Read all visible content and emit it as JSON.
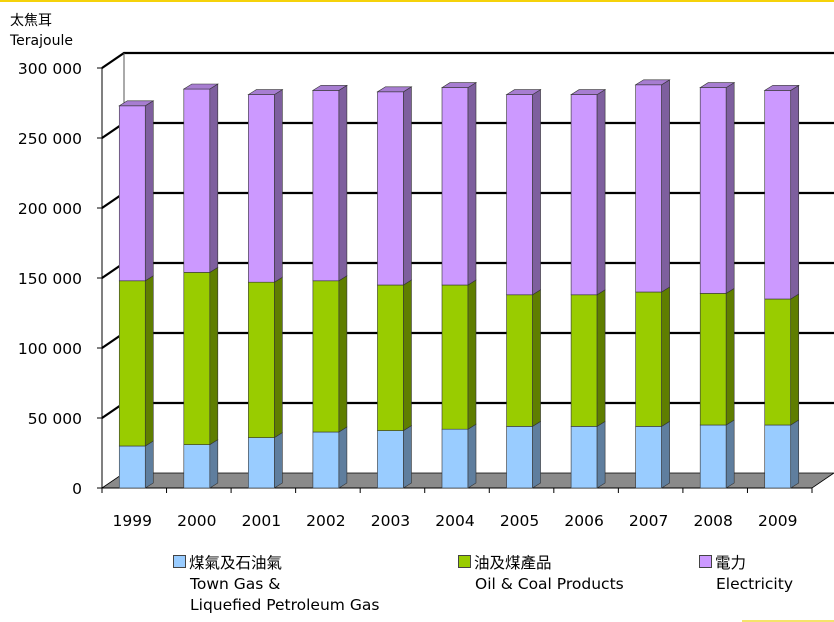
{
  "chart_data": {
    "type": "bar",
    "stacked": true,
    "unit_zh": "太焦耳",
    "unit_en": "Terajoule",
    "categories": [
      "1999",
      "2000",
      "2001",
      "2002",
      "2003",
      "2004",
      "2005",
      "2006",
      "2007",
      "2008",
      "2009"
    ],
    "series": [
      {
        "name_zh": "煤氣及石油氣",
        "name_en_line1": "Town Gas &",
        "name_en_line2": "Liquefied Petroleum Gas",
        "color": "#99ccff",
        "values": [
          30000,
          31000,
          36000,
          40000,
          41000,
          42000,
          44000,
          44000,
          44000,
          45000,
          45000
        ]
      },
      {
        "name_zh": "油及煤產品",
        "name_en_line1": "Oil & Coal Products",
        "name_en_line2": "",
        "color": "#99cc00",
        "values": [
          118000,
          123000,
          111000,
          108000,
          104000,
          103000,
          94000,
          94000,
          96000,
          94000,
          90000
        ]
      },
      {
        "name_zh": "電力",
        "name_en_line1": "Electricity",
        "name_en_line2": "",
        "color": "#cc99ff",
        "values": [
          125000,
          131000,
          134000,
          136000,
          138000,
          141000,
          143000,
          143000,
          148000,
          147000,
          149000
        ]
      }
    ],
    "yticks": [
      "0",
      "50 000",
      "100 000",
      "150 000",
      "200 000",
      "250 000",
      "300 000"
    ],
    "ylim": [
      0,
      300000
    ],
    "grid": true,
    "legend_position": "bottom"
  }
}
